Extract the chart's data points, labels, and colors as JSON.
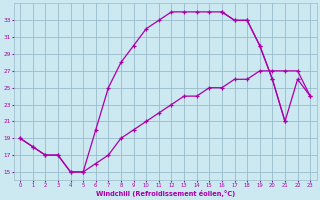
{
  "xlabel": "Windchill (Refroidissement éolien,°C)",
  "bg_color": "#cce8f0",
  "grid_color": "#99bbcc",
  "line_color": "#aa00aa",
  "hours": [
    0,
    1,
    2,
    3,
    4,
    5,
    6,
    7,
    8,
    9,
    10,
    11,
    12,
    13,
    14,
    15,
    16,
    17,
    18,
    19,
    20,
    21,
    22,
    23
  ],
  "line_upper": [
    19,
    18,
    17,
    17,
    15,
    15,
    20,
    25,
    28,
    30,
    32,
    33,
    34,
    34,
    34,
    34,
    34,
    33,
    null,
    null,
    null,
    null,
    null,
    null
  ],
  "line_lower": [
    19,
    18,
    17,
    17,
    15,
    15,
    16,
    17,
    19,
    20,
    21,
    22,
    23,
    24,
    24,
    25,
    25,
    26,
    26,
    27,
    27,
    27,
    27,
    24
  ],
  "line_right": [
    null,
    null,
    null,
    null,
    null,
    null,
    null,
    null,
    null,
    null,
    null,
    null,
    null,
    null,
    null,
    null,
    34,
    33,
    33,
    30,
    26,
    21,
    26,
    24
  ],
  "ylim": [
    14,
    35
  ],
  "yticks": [
    15,
    17,
    19,
    21,
    23,
    25,
    27,
    29,
    31,
    33
  ],
  "xlim": [
    -0.5,
    23.5
  ],
  "xticks": [
    0,
    1,
    2,
    3,
    4,
    5,
    6,
    7,
    8,
    9,
    10,
    11,
    12,
    13,
    14,
    15,
    16,
    17,
    18,
    19,
    20,
    21,
    22,
    23
  ],
  "line1": [
    19,
    18,
    17,
    17,
    15,
    15,
    20,
    25,
    28,
    30,
    32,
    33,
    34,
    34,
    34,
    34,
    34,
    33,
    33,
    30,
    26,
    21,
    26,
    24
  ],
  "line2": [
    19,
    18,
    17,
    17,
    15,
    15,
    16,
    17,
    19,
    20,
    21,
    22,
    23,
    24,
    24,
    25,
    25,
    26,
    26,
    27,
    27,
    27,
    27,
    24
  ],
  "figsize": [
    3.2,
    2.0
  ],
  "dpi": 100
}
